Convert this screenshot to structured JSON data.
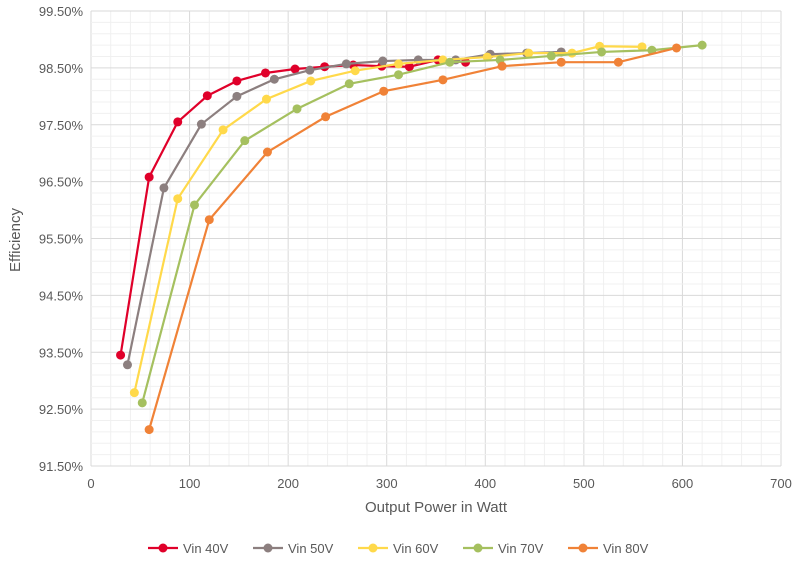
{
  "chart_data": {
    "type": "line",
    "title": "",
    "xlabel": "Output Power in Watt",
    "ylabel": "Efficiency",
    "xlim": [
      0,
      700
    ],
    "ylim": [
      91.5,
      99.5
    ],
    "x_ticks": [
      "0",
      "100",
      "200",
      "300",
      "400",
      "500",
      "600",
      "700"
    ],
    "y_ticks": [
      "91.50%",
      "92.50%",
      "93.50%",
      "94.50%",
      "95.50%",
      "96.50%",
      "97.50%",
      "98.50%",
      "99.50%"
    ],
    "grid": true,
    "legend": "bottom",
    "series": [
      {
        "name": "Vin 40V",
        "color": "#e0002a",
        "points": [
          [
            30,
            93.45
          ],
          [
            59,
            96.58
          ],
          [
            88,
            97.55
          ],
          [
            118,
            98.01
          ],
          [
            148,
            98.27
          ],
          [
            177,
            98.41
          ],
          [
            207,
            98.48
          ],
          [
            237,
            98.52
          ],
          [
            266,
            98.55
          ],
          [
            295,
            98.53
          ],
          [
            323,
            98.52
          ],
          [
            352,
            98.64
          ],
          [
            380,
            98.6
          ]
        ]
      },
      {
        "name": "Vin 50V",
        "color": "#8c7f7f",
        "points": [
          [
            37,
            93.28
          ],
          [
            74,
            96.39
          ],
          [
            112,
            97.51
          ],
          [
            148,
            98.0
          ],
          [
            186,
            98.3
          ],
          [
            222,
            98.46
          ],
          [
            259,
            98.57
          ],
          [
            296,
            98.62
          ],
          [
            332,
            98.64
          ],
          [
            370,
            98.64
          ],
          [
            405,
            98.74
          ],
          [
            442,
            98.76
          ],
          [
            477,
            98.78
          ]
        ]
      },
      {
        "name": "Vin 60V",
        "color": "#ffd94a",
        "points": [
          [
            44,
            92.79
          ],
          [
            88,
            96.2
          ],
          [
            134,
            97.41
          ],
          [
            178,
            97.95
          ],
          [
            223,
            98.27
          ],
          [
            268,
            98.45
          ],
          [
            312,
            98.57
          ],
          [
            357,
            98.64
          ],
          [
            402,
            98.69
          ],
          [
            444,
            98.76
          ],
          [
            488,
            98.76
          ],
          [
            516,
            98.88
          ],
          [
            559,
            98.87
          ]
        ]
      },
      {
        "name": "Vin 70V",
        "color": "#a5c05f",
        "points": [
          [
            52,
            92.61
          ],
          [
            105,
            96.09
          ],
          [
            156,
            97.22
          ],
          [
            209,
            97.78
          ],
          [
            262,
            98.22
          ],
          [
            312,
            98.38
          ],
          [
            364,
            98.6
          ],
          [
            415,
            98.64
          ],
          [
            467,
            98.71
          ],
          [
            518,
            98.78
          ],
          [
            569,
            98.81
          ],
          [
            620,
            98.9
          ]
        ]
      },
      {
        "name": "Vin 80V",
        "color": "#f08237",
        "points": [
          [
            59,
            92.14
          ],
          [
            120,
            95.83
          ],
          [
            179,
            97.02
          ],
          [
            238,
            97.64
          ],
          [
            297,
            98.09
          ],
          [
            357,
            98.29
          ],
          [
            417,
            98.53
          ],
          [
            477,
            98.6
          ],
          [
            535,
            98.6
          ],
          [
            594,
            98.85
          ]
        ]
      }
    ]
  }
}
